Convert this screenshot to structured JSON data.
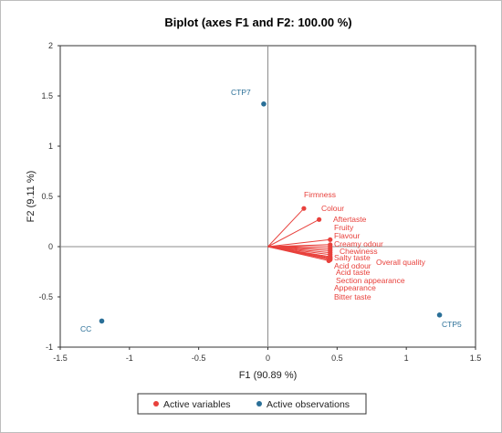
{
  "chart_data": {
    "type": "scatter",
    "title": "Biplot (axes F1 and F2: 100.00 %)",
    "xlabel": "F1 (90.89 %)",
    "ylabel": "F2 (9.11 %)",
    "xlim": [
      -1.5,
      1.5
    ],
    "ylim": [
      -1,
      2
    ],
    "xticks": [
      -1.5,
      -1,
      -0.5,
      0,
      0.5,
      1,
      1.5
    ],
    "xtick_labels": [
      "-1.5",
      "-1",
      "-0.5",
      "0",
      "0.5",
      "1",
      "1.5"
    ],
    "yticks": [
      -1,
      -0.5,
      0,
      0.5,
      1,
      1.5,
      2
    ],
    "ytick_labels": [
      "-1",
      "-0.5",
      "0",
      "0.5",
      "1",
      "1.5",
      "2"
    ],
    "grid": false,
    "legend_position": "bottom",
    "colors": {
      "variables": "#e8413c",
      "observations": "#2a6f97"
    },
    "series": [
      {
        "name": "Active variables",
        "type": "vectors",
        "points": [
          {
            "label": "Firmness",
            "x": 0.26,
            "y": 0.38
          },
          {
            "label": "Colour",
            "x": 0.37,
            "y": 0.27
          },
          {
            "label": "Aftertaste",
            "x": 0.45,
            "y": 0.07
          },
          {
            "label": "Fruity",
            "x": 0.45,
            "y": 0.02
          },
          {
            "label": "Flavour",
            "x": 0.45,
            "y": 0.0
          },
          {
            "label": "Creamy odour",
            "x": 0.45,
            "y": -0.02
          },
          {
            "label": "Chewiness",
            "x": 0.45,
            "y": -0.04
          },
          {
            "label": "Salty taste",
            "x": 0.45,
            "y": -0.06
          },
          {
            "label": "Acid odour",
            "x": 0.45,
            "y": -0.08
          },
          {
            "label": "Acid taste",
            "x": 0.45,
            "y": -0.1
          },
          {
            "label": "Section appearance",
            "x": 0.45,
            "y": -0.11
          },
          {
            "label": "Overall quality",
            "x": 0.45,
            "y": -0.12
          },
          {
            "label": "Appearance",
            "x": 0.45,
            "y": -0.13
          },
          {
            "label": "Bitter taste",
            "x": 0.44,
            "y": -0.14
          }
        ]
      },
      {
        "name": "Active observations",
        "type": "points",
        "points": [
          {
            "label": "CTP7",
            "x": -0.03,
            "y": 1.42
          },
          {
            "label": "CC",
            "x": -1.2,
            "y": -0.74
          },
          {
            "label": "CTP5",
            "x": 1.24,
            "y": -0.68
          }
        ]
      }
    ]
  }
}
